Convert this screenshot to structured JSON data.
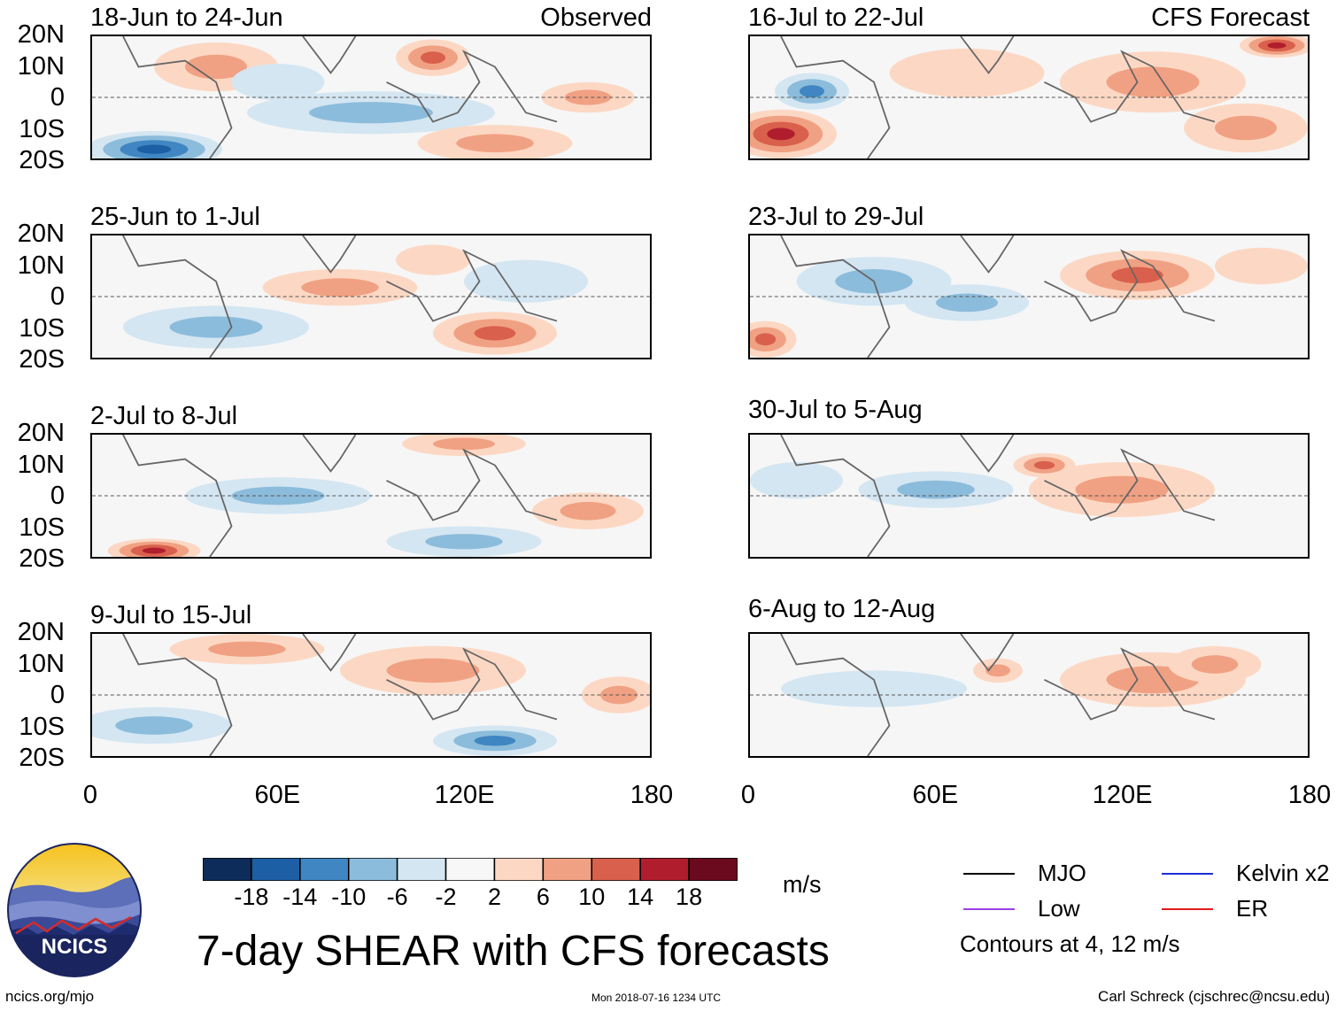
{
  "chart_data": {
    "type": "heatmap",
    "title": "7-day SHEAR with CFS forecasts",
    "units": "m/s",
    "x_range": [
      0,
      180
    ],
    "y_range": [
      -20,
      20
    ],
    "x_ticks": [
      "0",
      "60E",
      "120E",
      "180"
    ],
    "y_ticks": [
      "20N",
      "10N",
      "0",
      "10S",
      "20S"
    ],
    "colorbar_levels": [
      "-18",
      "-14",
      "-10",
      "-6",
      "-2",
      "2",
      "6",
      "10",
      "14",
      "18"
    ],
    "colorbar_colors": [
      "#0d2c5a",
      "#1d5fa4",
      "#3f86c2",
      "#8cbcdb",
      "#d4e6f2",
      "#f7f7f7",
      "#fcd8c4",
      "#f1a183",
      "#d9604d",
      "#b01e2d",
      "#6b0a1f"
    ],
    "contours_note": "Contours at 4, 12 m/s",
    "contour_legend": [
      {
        "name": "MJO",
        "color": "#000000"
      },
      {
        "name": "Kelvin x2",
        "color": "#1c2fd6"
      },
      {
        "name": "Low",
        "color": "#9b3ee8"
      },
      {
        "name": "ER",
        "color": "#e01b1b"
      }
    ],
    "panels": [
      {
        "title": "18-Jun to 24-Jun",
        "label": "Observed",
        "column": "observed",
        "blobs": [
          {
            "lon": 40,
            "lat": 10,
            "rx": 20,
            "ry": 8,
            "v": 6
          },
          {
            "lon": 110,
            "lat": 13,
            "rx": 12,
            "ry": 6,
            "v": 10
          },
          {
            "lon": 20,
            "lat": -17,
            "rx": 22,
            "ry": 6,
            "v": -16
          },
          {
            "lon": 90,
            "lat": -5,
            "rx": 40,
            "ry": 7,
            "v": -5
          },
          {
            "lon": 130,
            "lat": -15,
            "rx": 25,
            "ry": 6,
            "v": 6
          },
          {
            "lon": 160,
            "lat": 0,
            "rx": 15,
            "ry": 5,
            "v": 6
          },
          {
            "lon": 60,
            "lat": 5,
            "rx": 15,
            "ry": 6,
            "v": -4
          }
        ]
      },
      {
        "title": "16-Jul to 22-Jul",
        "label": "CFS Forecast",
        "column": "forecast",
        "blobs": [
          {
            "lon": 10,
            "lat": -12,
            "rx": 18,
            "ry": 8,
            "v": 16
          },
          {
            "lon": 20,
            "lat": 2,
            "rx": 12,
            "ry": 6,
            "v": -10
          },
          {
            "lon": 130,
            "lat": 5,
            "rx": 30,
            "ry": 10,
            "v": 8
          },
          {
            "lon": 170,
            "lat": 17,
            "rx": 12,
            "ry": 4,
            "v": 14
          },
          {
            "lon": 160,
            "lat": -10,
            "rx": 20,
            "ry": 8,
            "v": 6
          },
          {
            "lon": 70,
            "lat": 8,
            "rx": 25,
            "ry": 8,
            "v": 4
          }
        ]
      },
      {
        "title": "25-Jun to 1-Jul",
        "label": "",
        "column": "observed",
        "blobs": [
          {
            "lon": 80,
            "lat": 3,
            "rx": 25,
            "ry": 6,
            "v": 5
          },
          {
            "lon": 130,
            "lat": -12,
            "rx": 20,
            "ry": 7,
            "v": 10
          },
          {
            "lon": 40,
            "lat": -10,
            "rx": 30,
            "ry": 7,
            "v": -5
          },
          {
            "lon": 140,
            "lat": 5,
            "rx": 20,
            "ry": 7,
            "v": -4
          },
          {
            "lon": 110,
            "lat": 12,
            "rx": 12,
            "ry": 5,
            "v": 4
          }
        ]
      },
      {
        "title": "23-Jul to 29-Jul",
        "label": "",
        "column": "forecast",
        "blobs": [
          {
            "lon": 40,
            "lat": 5,
            "rx": 25,
            "ry": 8,
            "v": -8
          },
          {
            "lon": 125,
            "lat": 7,
            "rx": 25,
            "ry": 8,
            "v": 12
          },
          {
            "lon": 5,
            "lat": -14,
            "rx": 10,
            "ry": 6,
            "v": 10
          },
          {
            "lon": 70,
            "lat": -2,
            "rx": 20,
            "ry": 6,
            "v": -6
          },
          {
            "lon": 165,
            "lat": 10,
            "rx": 15,
            "ry": 6,
            "v": 4
          }
        ]
      },
      {
        "title": "2-Jul to 8-Jul",
        "label": "",
        "column": "observed",
        "blobs": [
          {
            "lon": 20,
            "lat": -18,
            "rx": 15,
            "ry": 4,
            "v": 16
          },
          {
            "lon": 120,
            "lat": 17,
            "rx": 20,
            "ry": 4,
            "v": 8
          },
          {
            "lon": 60,
            "lat": 0,
            "rx": 30,
            "ry": 6,
            "v": -5
          },
          {
            "lon": 120,
            "lat": -15,
            "rx": 25,
            "ry": 5,
            "v": -8
          },
          {
            "lon": 160,
            "lat": -5,
            "rx": 18,
            "ry": 6,
            "v": 5
          }
        ]
      },
      {
        "title": "30-Jul to 5-Aug",
        "label": "",
        "column": "forecast",
        "blobs": [
          {
            "lon": 120,
            "lat": 2,
            "rx": 30,
            "ry": 9,
            "v": 8
          },
          {
            "lon": 60,
            "lat": 2,
            "rx": 25,
            "ry": 6,
            "v": -5
          },
          {
            "lon": 95,
            "lat": 10,
            "rx": 10,
            "ry": 4,
            "v": 10
          },
          {
            "lon": 15,
            "lat": 5,
            "rx": 15,
            "ry": 6,
            "v": -3
          }
        ]
      },
      {
        "title": "9-Jul to 15-Jul",
        "label": "",
        "column": "observed",
        "blobs": [
          {
            "lon": 110,
            "lat": 8,
            "rx": 30,
            "ry": 8,
            "v": 8
          },
          {
            "lon": 50,
            "lat": 15,
            "rx": 25,
            "ry": 5,
            "v": 6
          },
          {
            "lon": 130,
            "lat": -15,
            "rx": 20,
            "ry": 5,
            "v": -10
          },
          {
            "lon": 20,
            "lat": -10,
            "rx": 25,
            "ry": 6,
            "v": -5
          },
          {
            "lon": 170,
            "lat": 0,
            "rx": 12,
            "ry": 6,
            "v": 6
          }
        ]
      },
      {
        "title": "6-Aug to 12-Aug",
        "label": "",
        "column": "forecast",
        "blobs": [
          {
            "lon": 130,
            "lat": 5,
            "rx": 30,
            "ry": 9,
            "v": 6
          },
          {
            "lon": 40,
            "lat": 2,
            "rx": 30,
            "ry": 6,
            "v": -4
          },
          {
            "lon": 80,
            "lat": 8,
            "rx": 8,
            "ry": 4,
            "v": 8
          },
          {
            "lon": 150,
            "lat": 10,
            "rx": 15,
            "ry": 6,
            "v": 8
          }
        ]
      }
    ]
  },
  "logo": {
    "text": "NCICS"
  },
  "footer": {
    "left": "ncics.org/mjo",
    "center": "Mon 2018-07-16 1234 UTC",
    "right": "Carl Schreck (cjschrec@ncsu.edu)"
  }
}
